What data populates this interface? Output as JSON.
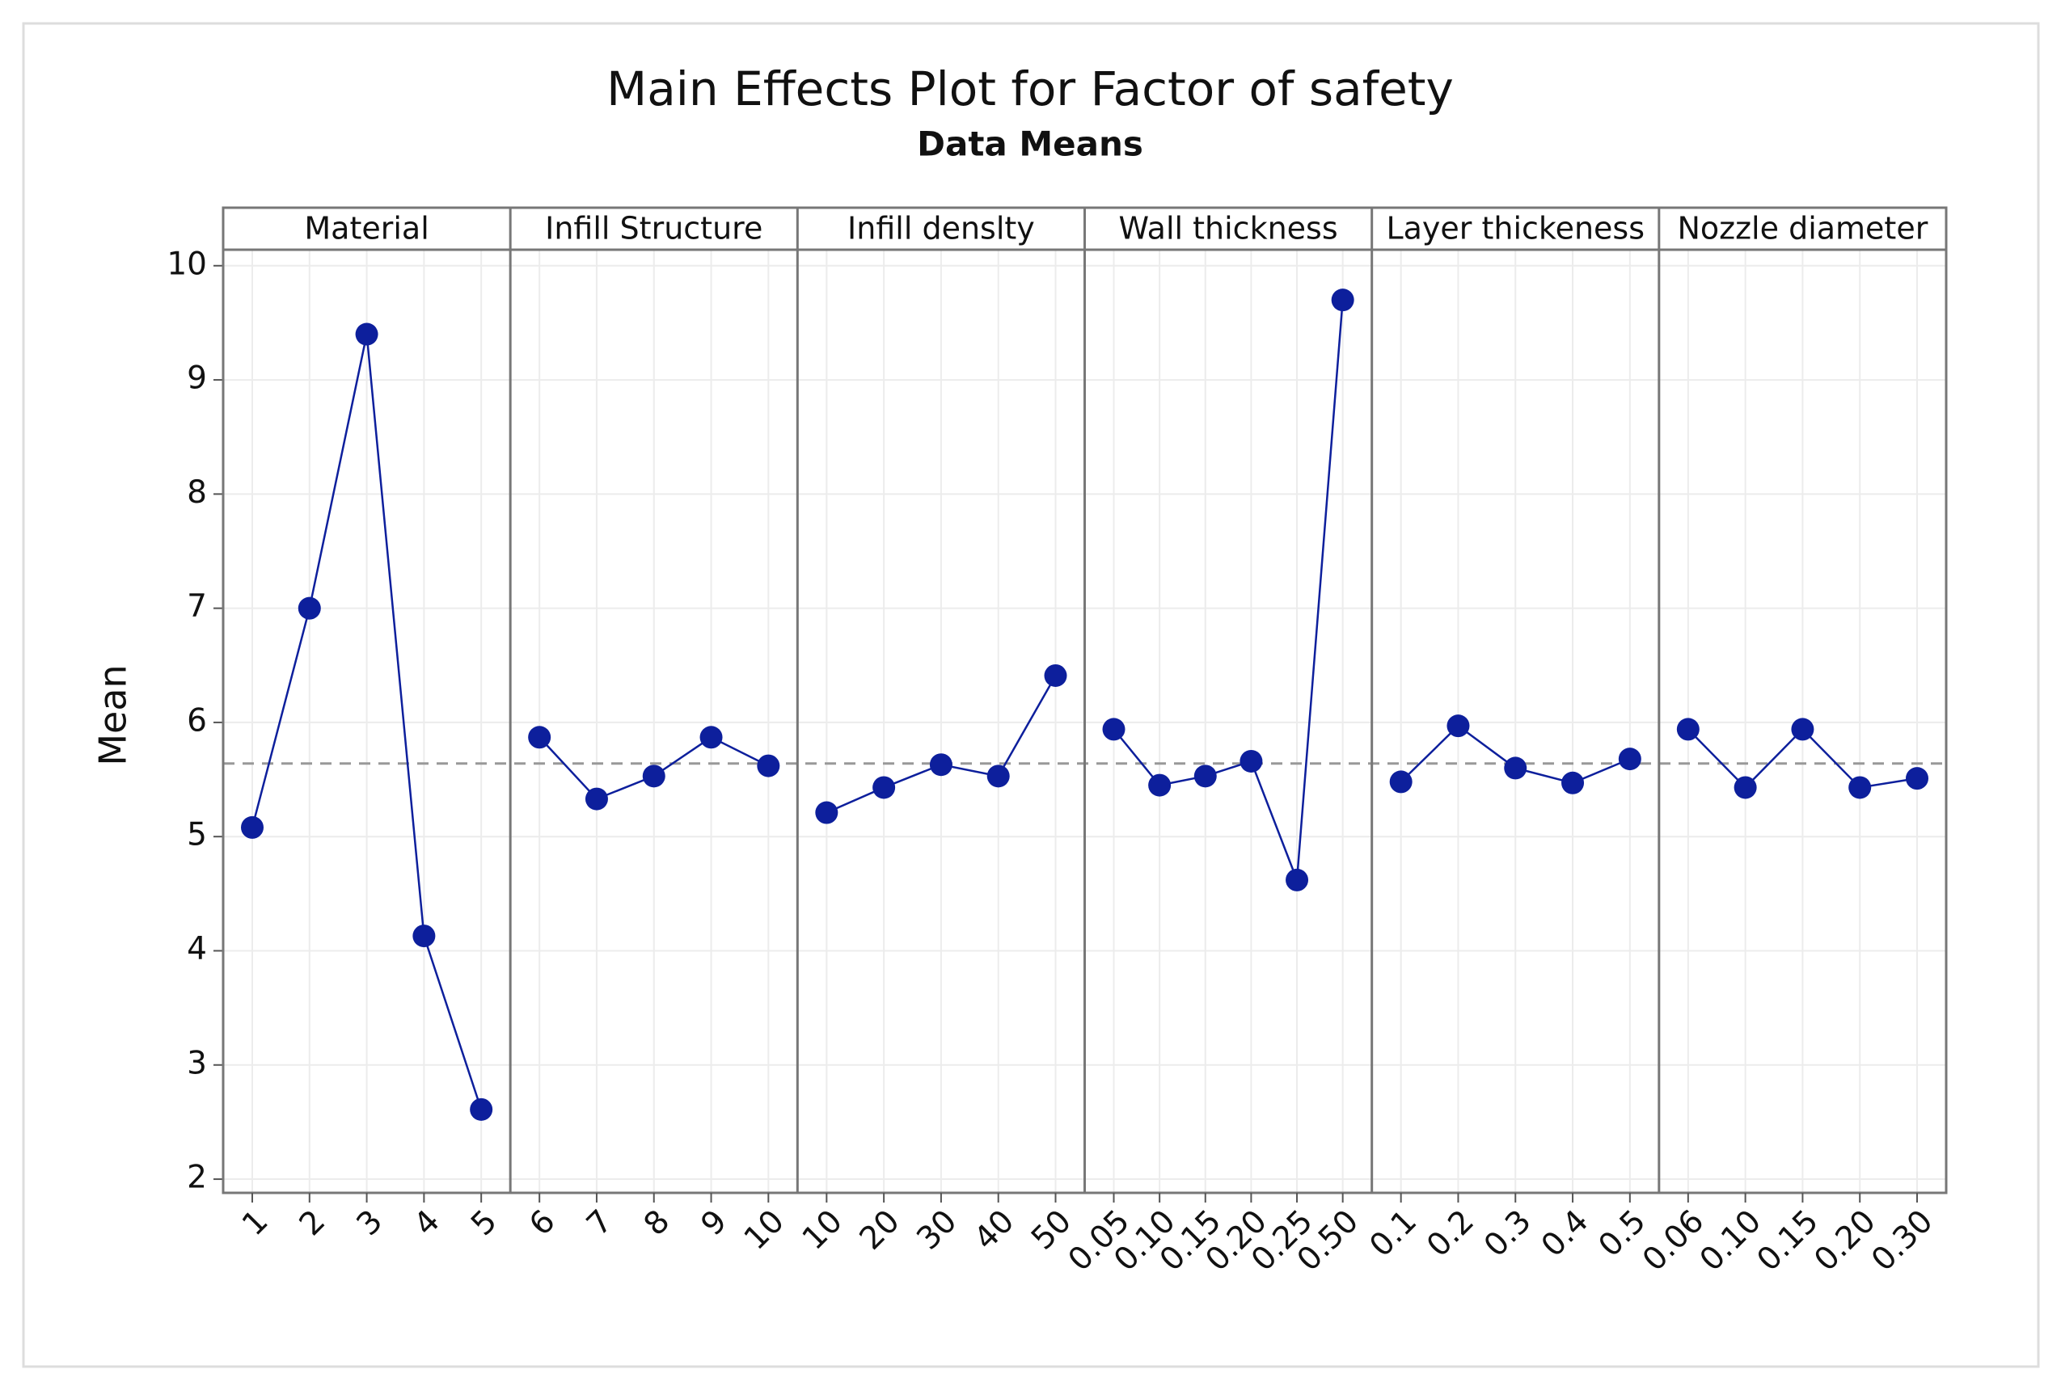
{
  "chart_data": {
    "type": "main-effects",
    "title": "Main Effects Plot for Factor of safety",
    "subtitle": "Data Means",
    "ylabel": "Mean",
    "ylim": [
      1.88,
      10.14
    ],
    "yticks": [
      2,
      3,
      4,
      5,
      6,
      7,
      8,
      9,
      10
    ],
    "grid": true,
    "color": "#0d1f9c",
    "mean_line": 5.64,
    "panels": [
      {
        "name": "Material",
        "categories": [
          "1",
          "2",
          "3",
          "4",
          "5"
        ],
        "values": [
          5.08,
          7.0,
          9.4,
          4.13,
          2.61
        ]
      },
      {
        "name": "Infill Structure",
        "categories": [
          "6",
          "7",
          "8",
          "9",
          "10"
        ],
        "values": [
          5.87,
          5.33,
          5.53,
          5.87,
          5.62
        ]
      },
      {
        "name": "Infill denslty",
        "categories": [
          "10",
          "20",
          "30",
          "40",
          "50"
        ],
        "values": [
          5.21,
          5.43,
          5.63,
          5.53,
          6.41
        ]
      },
      {
        "name": "Wall thickness",
        "categories": [
          "0.05",
          "0.10",
          "0.15",
          "0.20",
          "0.25",
          "0.50"
        ],
        "values": [
          5.94,
          5.45,
          5.53,
          5.66,
          4.62,
          9.7
        ]
      },
      {
        "name": "Layer thickeness",
        "categories": [
          "0.1",
          "0.2",
          "0.3",
          "0.4",
          "0.5"
        ],
        "values": [
          5.48,
          5.97,
          5.6,
          5.47,
          5.68
        ]
      },
      {
        "name": "Nozzle diameter",
        "categories": [
          "0.06",
          "0.10",
          "0.15",
          "0.20",
          "0.30"
        ],
        "values": [
          5.94,
          5.43,
          5.94,
          5.43,
          5.51
        ]
      }
    ]
  }
}
